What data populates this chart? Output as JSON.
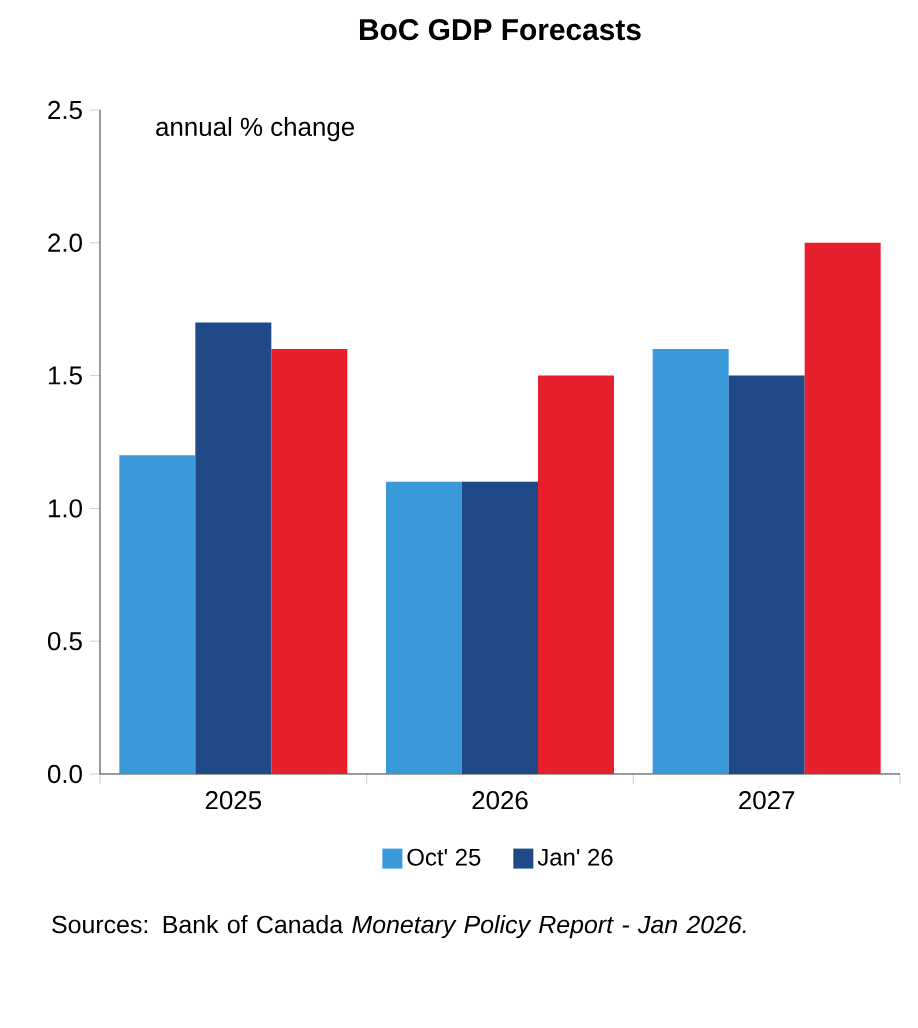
{
  "chart_data": {
    "type": "bar",
    "title": "BoC GDP Forecasts",
    "ylabel": "annual % change",
    "categories": [
      "2025",
      "2026",
      "2027"
    ],
    "series": [
      {
        "name": "Oct' 25",
        "color": "#3a9ad9",
        "values": [
          1.2,
          1.1,
          1.6
        ]
      },
      {
        "name": "Jan' 26",
        "color": "#1f4a87",
        "values": [
          1.7,
          1.1,
          1.5
        ]
      },
      {
        "color": "#e8202d",
        "values": [
          1.6,
          1.5,
          2.0
        ]
      }
    ],
    "ylim": [
      0,
      2.5
    ],
    "yticks": [
      {
        "value": 0,
        "label": "0.0"
      },
      0.5,
      {
        "value": 1,
        "label": "1.0"
      },
      1.5,
      {
        "value": 2,
        "label": "2.0"
      },
      2.5
    ],
    "grid": false,
    "legend": "bottom",
    "annotations": [
      "Sources: Bank of Canada *Monetary Policy Report - Jan 2026.*"
    ]
  }
}
